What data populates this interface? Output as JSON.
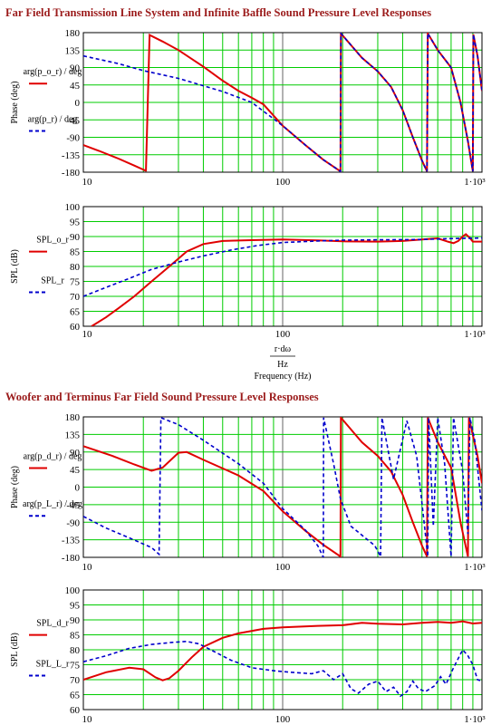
{
  "sections": [
    {
      "title": "Far Field Transmission Line System and Infinite Baffle Sound Pressure Level Responses"
    },
    {
      "title": "Woofer and Terminus Far Field Sound Pressure Level Responses"
    }
  ],
  "x_axis": {
    "tick_labels": [
      "10",
      "100",
      "1·10³"
    ],
    "xlabel_numerator": "r·dω",
    "xlabel_denominator": "Hz",
    "xlabel": "Frequency (Hz)"
  },
  "colors": {
    "grid": "#00cc00",
    "series_red": "#e00000",
    "series_blue": "#0000cc",
    "title": "#9b1b1b"
  },
  "chart_data": [
    {
      "type": "line",
      "xscale": "log",
      "xlim": [
        10,
        1000
      ],
      "ylim": [
        -180,
        180
      ],
      "yticks": [
        "180",
        "135",
        "90",
        "45",
        "0",
        "-45",
        "-90",
        "-135",
        "-180"
      ],
      "ylabel": "Phase (deg)",
      "legend": [
        "arg(p_o_r) / deg",
        "arg(p_r) / deg"
      ],
      "series": [
        {
          "name": "arg(p_o_r) / deg",
          "color": "red",
          "style": "solid",
          "points": [
            [
              10,
              -110
            ],
            [
              12,
              -125
            ],
            [
              15,
              -145
            ],
            [
              18,
              -163
            ],
            [
              20.5,
              -176
            ],
            [
              20.6,
              -176
            ],
            [
              21.5,
              174
            ],
            [
              25,
              157
            ],
            [
              30,
              135
            ],
            [
              40,
              92
            ],
            [
              50,
              56
            ],
            [
              60,
              30
            ],
            [
              70,
              12
            ],
            [
              80,
              -5
            ],
            [
              100,
              -60
            ],
            [
              130,
              -110
            ],
            [
              160,
              -148
            ],
            [
              195,
              -178
            ],
            [
              196,
              178
            ],
            [
              250,
              115
            ],
            [
              300,
              80
            ],
            [
              350,
              40
            ],
            [
              400,
              -20
            ],
            [
              450,
              -90
            ],
            [
              500,
              -150
            ],
            [
              530,
              -178
            ],
            [
              535,
              178
            ],
            [
              600,
              135
            ],
            [
              700,
              90
            ],
            [
              780,
              0
            ],
            [
              850,
              -100
            ],
            [
              900,
              -178
            ],
            [
              905,
              175
            ],
            [
              950,
              120
            ],
            [
              1000,
              30
            ]
          ]
        },
        {
          "name": "arg(p_r) / deg",
          "color": "blue",
          "style": "dashed",
          "points": [
            [
              10,
              120
            ],
            [
              15,
              100
            ],
            [
              20,
              82
            ],
            [
              30,
              62
            ],
            [
              50,
              28
            ],
            [
              70,
              0
            ],
            [
              100,
              -60
            ],
            [
              130,
              -110
            ],
            [
              160,
              -148
            ],
            [
              195,
              -178
            ],
            [
              196,
              178
            ],
            [
              250,
              115
            ],
            [
              300,
              80
            ],
            [
              350,
              40
            ],
            [
              400,
              -20
            ],
            [
              450,
              -90
            ],
            [
              500,
              -150
            ],
            [
              530,
              -178
            ],
            [
              535,
              178
            ],
            [
              600,
              135
            ],
            [
              700,
              90
            ],
            [
              780,
              0
            ],
            [
              850,
              -100
            ],
            [
              900,
              -178
            ],
            [
              905,
              175
            ],
            [
              950,
              120
            ],
            [
              1000,
              30
            ]
          ]
        }
      ]
    },
    {
      "type": "line",
      "xscale": "log",
      "xlim": [
        10,
        1000
      ],
      "ylim": [
        60,
        100
      ],
      "yticks": [
        "100",
        "95",
        "90",
        "85",
        "80",
        "75",
        "70",
        "65",
        "60"
      ],
      "ylabel": "SPL (dB)",
      "legend": [
        "SPL_o_r",
        "SPL_r"
      ],
      "series": [
        {
          "name": "SPL_o_r",
          "color": "red",
          "style": "solid",
          "points": [
            [
              11,
              60
            ],
            [
              13,
              63
            ],
            [
              15,
              66
            ],
            [
              18,
              70
            ],
            [
              22,
              75
            ],
            [
              27,
              80
            ],
            [
              33,
              85
            ],
            [
              40,
              87.5
            ],
            [
              50,
              88.5
            ],
            [
              70,
              88.8
            ],
            [
              100,
              89
            ],
            [
              150,
              88.7
            ],
            [
              200,
              88.4
            ],
            [
              300,
              88.3
            ],
            [
              400,
              88.5
            ],
            [
              500,
              89
            ],
            [
              600,
              89.4
            ],
            [
              680,
              88.2
            ],
            [
              720,
              87.8
            ],
            [
              760,
              88.5
            ],
            [
              800,
              90
            ],
            [
              830,
              90.8
            ],
            [
              870,
              89.5
            ],
            [
              900,
              88.3
            ],
            [
              1000,
              88.3
            ]
          ]
        },
        {
          "name": "SPL_r",
          "color": "blue",
          "style": "dashed",
          "points": [
            [
              10,
              70
            ],
            [
              13,
              73
            ],
            [
              17,
              76
            ],
            [
              22,
              79
            ],
            [
              30,
              81.5
            ],
            [
              40,
              83.5
            ],
            [
              55,
              85.5
            ],
            [
              75,
              87
            ],
            [
              100,
              88
            ],
            [
              150,
              88.5
            ],
            [
              200,
              88.8
            ],
            [
              300,
              88.9
            ],
            [
              500,
              89
            ],
            [
              700,
              89.3
            ],
            [
              1000,
              89.5
            ]
          ]
        }
      ]
    },
    {
      "type": "line",
      "xscale": "log",
      "xlim": [
        10,
        1000
      ],
      "ylim": [
        -180,
        180
      ],
      "yticks": [
        "180",
        "135",
        "90",
        "45",
        "0",
        "-45",
        "-90",
        "-135",
        "-180"
      ],
      "ylabel": "Phase (deg)",
      "legend": [
        "arg(p_d_r) / deg",
        "arg(p_L_r) / deg"
      ],
      "series": [
        {
          "name": "arg(p_d_r) / deg",
          "color": "red",
          "style": "solid",
          "points": [
            [
              10,
              105
            ],
            [
              14,
              80
            ],
            [
              18,
              58
            ],
            [
              22,
              42
            ],
            [
              25,
              50
            ],
            [
              30,
              88
            ],
            [
              33,
              90
            ],
            [
              40,
              70
            ],
            [
              60,
              30
            ],
            [
              80,
              -10
            ],
            [
              100,
              -62
            ],
            [
              130,
              -112
            ],
            [
              160,
              -148
            ],
            [
              195,
              -178
            ],
            [
              196,
              178
            ],
            [
              250,
              115
            ],
            [
              300,
              80
            ],
            [
              350,
              40
            ],
            [
              400,
              -20
            ],
            [
              450,
              -90
            ],
            [
              500,
              -150
            ],
            [
              530,
              -178
            ],
            [
              535,
              178
            ],
            [
              600,
              115
            ],
            [
              700,
              50
            ],
            [
              780,
              -90
            ],
            [
              850,
              -178
            ],
            [
              860,
              178
            ],
            [
              950,
              80
            ],
            [
              1000,
              10
            ]
          ]
        },
        {
          "name": "arg(p_L_r) / deg",
          "color": "blue",
          "style": "dashed",
          "points": [
            [
              10,
              -75
            ],
            [
              13,
              -105
            ],
            [
              17,
              -130
            ],
            [
              22,
              -155
            ],
            [
              24,
              -172
            ],
            [
              24.5,
              178
            ],
            [
              30,
              160
            ],
            [
              40,
              120
            ],
            [
              60,
              60
            ],
            [
              80,
              10
            ],
            [
              100,
              -55
            ],
            [
              130,
              -110
            ],
            [
              150,
              -150
            ],
            [
              160,
              -180
            ],
            [
              160.5,
              178
            ],
            [
              180,
              60
            ],
            [
              195,
              -30
            ],
            [
              220,
              -100
            ],
            [
              290,
              -150
            ],
            [
              310,
              -178
            ],
            [
              315,
              178
            ],
            [
              360,
              20
            ],
            [
              420,
              170
            ],
            [
              470,
              80
            ],
            [
              515,
              -100
            ],
            [
              535,
              -178
            ],
            [
              540,
              178
            ],
            [
              570,
              -100
            ],
            [
              600,
              178
            ],
            [
              650,
              60
            ],
            [
              700,
              -178
            ],
            [
              720,
              178
            ],
            [
              800,
              40
            ],
            [
              850,
              -120
            ],
            [
              870,
              178
            ],
            [
              920,
              120
            ],
            [
              1000,
              -60
            ]
          ]
        }
      ]
    },
    {
      "type": "line",
      "xscale": "log",
      "xlim": [
        10,
        1000
      ],
      "ylim": [
        60,
        100
      ],
      "yticks": [
        "100",
        "95",
        "90",
        "85",
        "80",
        "75",
        "70",
        "65",
        "60"
      ],
      "ylabel": "SPL (dB)",
      "legend": [
        "SPL_d_r",
        "SPL_L_r"
      ],
      "series": [
        {
          "name": "SPL_d_r",
          "color": "red",
          "style": "solid",
          "points": [
            [
              10,
              70
            ],
            [
              13,
              72.5
            ],
            [
              17,
              74
            ],
            [
              20,
              73.5
            ],
            [
              23,
              70.8
            ],
            [
              25,
              69.8
            ],
            [
              27,
              70.5
            ],
            [
              30,
              73
            ],
            [
              35,
              77.5
            ],
            [
              40,
              81
            ],
            [
              50,
              84
            ],
            [
              60,
              85.5
            ],
            [
              80,
              87
            ],
            [
              100,
              87.5
            ],
            [
              150,
              88
            ],
            [
              200,
              88.2
            ],
            [
              250,
              89
            ],
            [
              300,
              88.7
            ],
            [
              400,
              88.5
            ],
            [
              500,
              89
            ],
            [
              600,
              89.3
            ],
            [
              700,
              89
            ],
            [
              800,
              89.5
            ],
            [
              900,
              88.8
            ],
            [
              1000,
              89
            ]
          ]
        },
        {
          "name": "SPL_L_r",
          "color": "blue",
          "style": "dashed",
          "points": [
            [
              10,
              76
            ],
            [
              13,
              78
            ],
            [
              17,
              80.5
            ],
            [
              22,
              81.8
            ],
            [
              28,
              82.5
            ],
            [
              33,
              82.8
            ],
            [
              38,
              82
            ],
            [
              45,
              79.5
            ],
            [
              55,
              76.5
            ],
            [
              70,
              74
            ],
            [
              90,
              73
            ],
            [
              110,
              72.5
            ],
            [
              140,
              72
            ],
            [
              160,
              73
            ],
            [
              180,
              70
            ],
            [
              200,
              72
            ],
            [
              220,
              67
            ],
            [
              240,
              65.5
            ],
            [
              270,
              68.5
            ],
            [
              300,
              69.5
            ],
            [
              330,
              66
            ],
            [
              360,
              67.5
            ],
            [
              390,
              64.5
            ],
            [
              420,
              66
            ],
            [
              450,
              69.5
            ],
            [
              480,
              67
            ],
            [
              520,
              66
            ],
            [
              580,
              68
            ],
            [
              620,
              71
            ],
            [
              660,
              68.5
            ],
            [
              720,
              74
            ],
            [
              800,
              80
            ],
            [
              850,
              78
            ],
            [
              900,
              75
            ],
            [
              950,
              70
            ],
            [
              1000,
              69.5
            ]
          ]
        }
      ]
    }
  ]
}
